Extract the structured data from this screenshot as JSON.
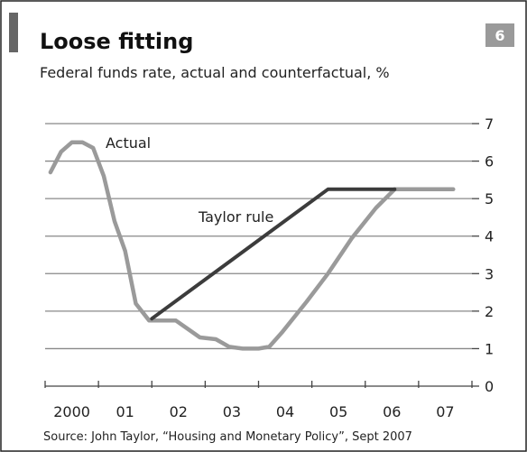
{
  "chart_data": {
    "type": "line",
    "title": "Loose fitting",
    "subtitle": "Federal funds rate, actual and counterfactual, %",
    "chart_number": "6",
    "source": "Source: John Taylor, “Housing and Monetary Policy”, Sept 2007",
    "xlabel": "",
    "ylabel": "",
    "xlim": [
      2000.0,
      2008.0
    ],
    "ylim": [
      0,
      7
    ],
    "y_ticks": [
      0,
      1,
      2,
      3,
      4,
      5,
      6,
      7
    ],
    "x_tick_labels": [
      {
        "x": 2000.5,
        "label": "2000"
      },
      {
        "x": 2001.5,
        "label": "01"
      },
      {
        "x": 2002.5,
        "label": "02"
      },
      {
        "x": 2003.5,
        "label": "03"
      },
      {
        "x": 2004.5,
        "label": "04"
      },
      {
        "x": 2005.5,
        "label": "05"
      },
      {
        "x": 2006.5,
        "label": "06"
      },
      {
        "x": 2007.5,
        "label": "07"
      }
    ],
    "grid": true,
    "colors": {
      "actual": "#9a9a9a",
      "taylor": "#3c3c3c",
      "grid": "#888888",
      "badge": "#9a9a9a"
    },
    "series": [
      {
        "name": "Actual",
        "points": [
          [
            2000.1,
            5.7
          ],
          [
            2000.3,
            6.25
          ],
          [
            2000.5,
            6.5
          ],
          [
            2000.7,
            6.5
          ],
          [
            2000.9,
            6.35
          ],
          [
            2001.1,
            5.6
          ],
          [
            2001.3,
            4.4
          ],
          [
            2001.5,
            3.6
          ],
          [
            2001.7,
            2.2
          ],
          [
            2001.95,
            1.75
          ],
          [
            2002.2,
            1.75
          ],
          [
            2002.45,
            1.75
          ],
          [
            2002.7,
            1.5
          ],
          [
            2002.9,
            1.3
          ],
          [
            2003.2,
            1.25
          ],
          [
            2003.45,
            1.05
          ],
          [
            2003.7,
            1.0
          ],
          [
            2004.0,
            1.0
          ],
          [
            2004.2,
            1.05
          ],
          [
            2004.45,
            1.45
          ],
          [
            2004.9,
            2.25
          ],
          [
            2005.3,
            3.0
          ],
          [
            2005.75,
            3.95
          ],
          [
            2006.2,
            4.75
          ],
          [
            2006.55,
            5.25
          ],
          [
            2007.0,
            5.25
          ],
          [
            2007.65,
            5.25
          ]
        ]
      },
      {
        "name": "Taylor rule",
        "points": [
          [
            2002.0,
            1.8
          ],
          [
            2005.3,
            5.25
          ],
          [
            2006.55,
            5.25
          ]
        ]
      }
    ]
  }
}
